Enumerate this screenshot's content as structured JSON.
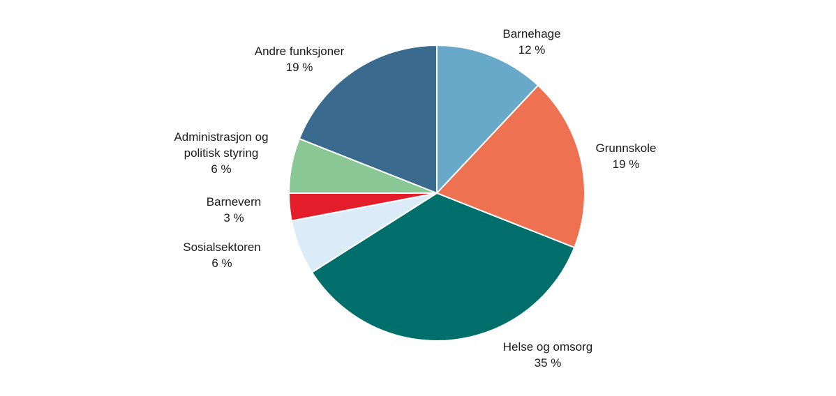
{
  "chart_data": {
    "type": "pie",
    "title": "",
    "start_angle_deg": 0,
    "direction": "clockwise",
    "slices": [
      {
        "label_lines": [
          "Barnehage"
        ],
        "value_label": "12 %",
        "value": 12,
        "color": "#68a9c9"
      },
      {
        "label_lines": [
          "Grunnskole"
        ],
        "value_label": "19 %",
        "value": 19,
        "color": "#ee7152"
      },
      {
        "label_lines": [
          "Helse og omsorg"
        ],
        "value_label": "35 %",
        "value": 35,
        "color": "#006e6a"
      },
      {
        "label_lines": [
          "Sosialsektoren"
        ],
        "value_label": "6 %",
        "value": 6,
        "color": "#dbebf8"
      },
      {
        "label_lines": [
          "Barnevern"
        ],
        "value_label": "3 %",
        "value": 3,
        "color": "#e31d2a"
      },
      {
        "label_lines": [
          "Administrasjon og",
          "politisk styring"
        ],
        "value_label": "6 %",
        "value": 6,
        "color": "#89c895"
      },
      {
        "label_lines": [
          "Andre funksjoner"
        ],
        "value_label": "19 %",
        "value": 19,
        "color": "#3a6a8e"
      }
    ]
  }
}
